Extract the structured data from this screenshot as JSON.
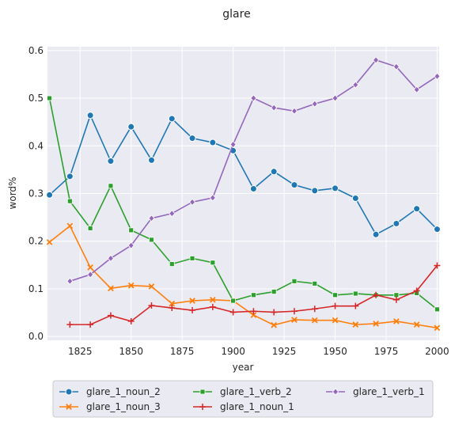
{
  "chart_data": {
    "type": "line",
    "title": "glare",
    "xlabel": "year",
    "ylabel": "word%",
    "xlim": [
      1809,
      2001
    ],
    "ylim": [
      -0.008,
      0.608
    ],
    "xticks": [
      1825,
      1850,
      1875,
      1900,
      1925,
      1950,
      1975,
      2000
    ],
    "yticks": [
      0.0,
      0.1,
      0.2,
      0.3,
      0.4,
      0.5,
      0.6
    ],
    "ytick_labels": [
      "0.0",
      "0.1",
      "0.2",
      "0.3",
      "0.4",
      "0.5",
      "0.6"
    ],
    "grid": true,
    "legend_position": "below",
    "series": [
      {
        "name": "glare_1_noun_2",
        "color": "#1f77b4",
        "marker": "circle",
        "x": [
          1810,
          1820,
          1830,
          1840,
          1850,
          1860,
          1870,
          1880,
          1890,
          1900,
          1910,
          1920,
          1930,
          1940,
          1950,
          1960,
          1970,
          1980,
          1990,
          2000
        ],
        "values": [
          0.297,
          0.336,
          0.464,
          0.368,
          0.44,
          0.37,
          0.457,
          0.416,
          0.407,
          0.39,
          0.31,
          0.346,
          0.318,
          0.306,
          0.311,
          0.29,
          0.214,
          0.237,
          0.268,
          0.225
        ]
      },
      {
        "name": "glare_1_noun_3",
        "color": "#ff7f0e",
        "marker": "x",
        "x": [
          1810,
          1820,
          1830,
          1840,
          1850,
          1860,
          1870,
          1880,
          1890,
          1900,
          1910,
          1920,
          1930,
          1940,
          1950,
          1960,
          1970,
          1980,
          1990,
          2000
        ],
        "values": [
          0.198,
          0.232,
          0.145,
          0.101,
          0.107,
          0.105,
          0.069,
          0.075,
          0.077,
          0.075,
          0.045,
          0.024,
          0.035,
          0.034,
          0.034,
          0.025,
          0.027,
          0.032,
          0.025,
          0.018
        ]
      },
      {
        "name": "glare_1_verb_2",
        "color": "#2ca02c",
        "marker": "square",
        "x": [
          1810,
          1820,
          1830,
          1840,
          1850,
          1860,
          1870,
          1880,
          1890,
          1900,
          1910,
          1920,
          1930,
          1940,
          1950,
          1960,
          1970,
          1980,
          1990,
          2000
        ],
        "values": [
          0.5,
          0.284,
          0.227,
          0.316,
          0.223,
          0.203,
          0.152,
          0.164,
          0.155,
          0.075,
          0.087,
          0.094,
          0.116,
          0.111,
          0.087,
          0.09,
          0.087,
          0.087,
          0.091,
          0.057
        ]
      },
      {
        "name": "glare_1_noun_1",
        "color": "#d62728",
        "marker": "plus",
        "x": [
          1820,
          1830,
          1840,
          1850,
          1860,
          1870,
          1880,
          1890,
          1900,
          1910,
          1920,
          1930,
          1940,
          1950,
          1960,
          1970,
          1980,
          1990,
          2000
        ],
        "values": [
          0.025,
          0.025,
          0.044,
          0.032,
          0.065,
          0.06,
          0.055,
          0.062,
          0.051,
          0.053,
          0.051,
          0.053,
          0.058,
          0.064,
          0.064,
          0.087,
          0.077,
          0.096,
          0.149
        ]
      },
      {
        "name": "glare_1_verb_1",
        "color": "#9467bd",
        "marker": "diamond",
        "x": [
          1820,
          1830,
          1840,
          1850,
          1860,
          1870,
          1880,
          1890,
          1900,
          1910,
          1920,
          1930,
          1940,
          1950,
          1960,
          1970,
          1980,
          1990,
          2000
        ],
        "values": [
          0.116,
          0.13,
          0.164,
          0.191,
          0.248,
          0.258,
          0.282,
          0.291,
          0.403,
          0.5,
          0.48,
          0.473,
          0.488,
          0.5,
          0.528,
          0.58,
          0.566,
          0.518,
          0.546
        ]
      }
    ]
  }
}
